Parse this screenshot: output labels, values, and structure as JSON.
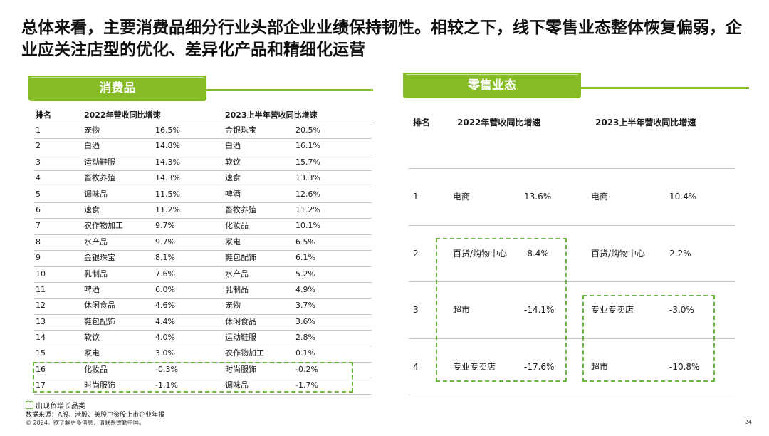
{
  "title": "总体来看，主要消费品细分行业头部企业业绩保持韧性。相较之下，线下零售业态整体恢复偏弱，企业应关注店型的优化、差异化产品和精细化运营",
  "consumer": {
    "tab_label": "消费品",
    "headers": {
      "rank": "排名",
      "col1": "2022年营收同比增速",
      "col2": "2023上半年营收同比增速"
    },
    "rows": [
      {
        "rank": "1",
        "name1": "宠物",
        "val1": "16.5%",
        "name2": "金银珠宝",
        "val2": "20.5%"
      },
      {
        "rank": "2",
        "name1": "白酒",
        "val1": "14.8%",
        "name2": "白酒",
        "val2": "16.1%"
      },
      {
        "rank": "3",
        "name1": "运动鞋服",
        "val1": "14.3%",
        "name2": "软饮",
        "val2": "15.7%"
      },
      {
        "rank": "4",
        "name1": "畜牧养殖",
        "val1": "14.3%",
        "name2": "速食",
        "val2": "13.3%"
      },
      {
        "rank": "5",
        "name1": "调味品",
        "val1": "11.5%",
        "name2": "啤酒",
        "val2": "12.6%"
      },
      {
        "rank": "6",
        "name1": "速食",
        "val1": "11.2%",
        "name2": "畜牧养殖",
        "val2": "11.2%"
      },
      {
        "rank": "7",
        "name1": "农作物加工",
        "val1": "9.7%",
        "name2": "化妆品",
        "val2": "10.1%"
      },
      {
        "rank": "8",
        "name1": "水产品",
        "val1": "9.7%",
        "name2": "家电",
        "val2": "6.5%"
      },
      {
        "rank": "9",
        "name1": "金银珠宝",
        "val1": "8.1%",
        "name2": "鞋包配饰",
        "val2": "6.1%"
      },
      {
        "rank": "10",
        "name1": "乳制品",
        "val1": "7.6%",
        "name2": "水产品",
        "val2": "5.2%"
      },
      {
        "rank": "11",
        "name1": "啤酒",
        "val1": "6.0%",
        "name2": "乳制品",
        "val2": "4.9%"
      },
      {
        "rank": "12",
        "name1": "休闲食品",
        "val1": "4.6%",
        "name2": "宠物",
        "val2": "3.7%"
      },
      {
        "rank": "13",
        "name1": "鞋包配饰",
        "val1": "4.4%",
        "name2": "休闲食品",
        "val2": "3.6%"
      },
      {
        "rank": "14",
        "name1": "软饮",
        "val1": "4.0%",
        "name2": "运动鞋服",
        "val2": "2.8%"
      },
      {
        "rank": "15",
        "name1": "家电",
        "val1": "3.0%",
        "name2": "农作物加工",
        "val2": "0.1%"
      },
      {
        "rank": "16",
        "name1": "化妆品",
        "val1": "-0.3%",
        "name2": "时尚服饰",
        "val2": "-0.2%"
      },
      {
        "rank": "17",
        "name1": "时尚服饰",
        "val1": "-1.1%",
        "name2": "调味品",
        "val2": "-1.7%"
      }
    ]
  },
  "retail": {
    "tab_label": "零售业态",
    "headers": {
      "rank": "排名",
      "col1": "2022年营收同比增速",
      "col2": "2023上半年营收同比增速"
    },
    "rows": [
      {
        "rank": "1",
        "name1": "电商",
        "val1": "13.6%",
        "name2": "电商",
        "val2": "10.4%"
      },
      {
        "rank": "2",
        "name1": "百货/购物中心",
        "val1": "-8.4%",
        "name2": "百货/购物中心",
        "val2": "2.2%"
      },
      {
        "rank": "3",
        "name1": "超市",
        "val1": "-14.1%",
        "name2": "专业专卖店",
        "val2": "-3.0%"
      },
      {
        "rank": "4",
        "name1": "专业专卖店",
        "val1": "-17.6%",
        "name2": "超市",
        "val2": "-10.8%"
      }
    ]
  },
  "legend": "出现负增长品类",
  "source": "数据来源：A股、港股、美股中资股上市企业年报",
  "copyright": "© 2024。欲了解更多信息，请联系德勤中国。",
  "page_number": "24",
  "colors": {
    "accent_green": "#86bc25",
    "dash_green": "#6fb544"
  }
}
